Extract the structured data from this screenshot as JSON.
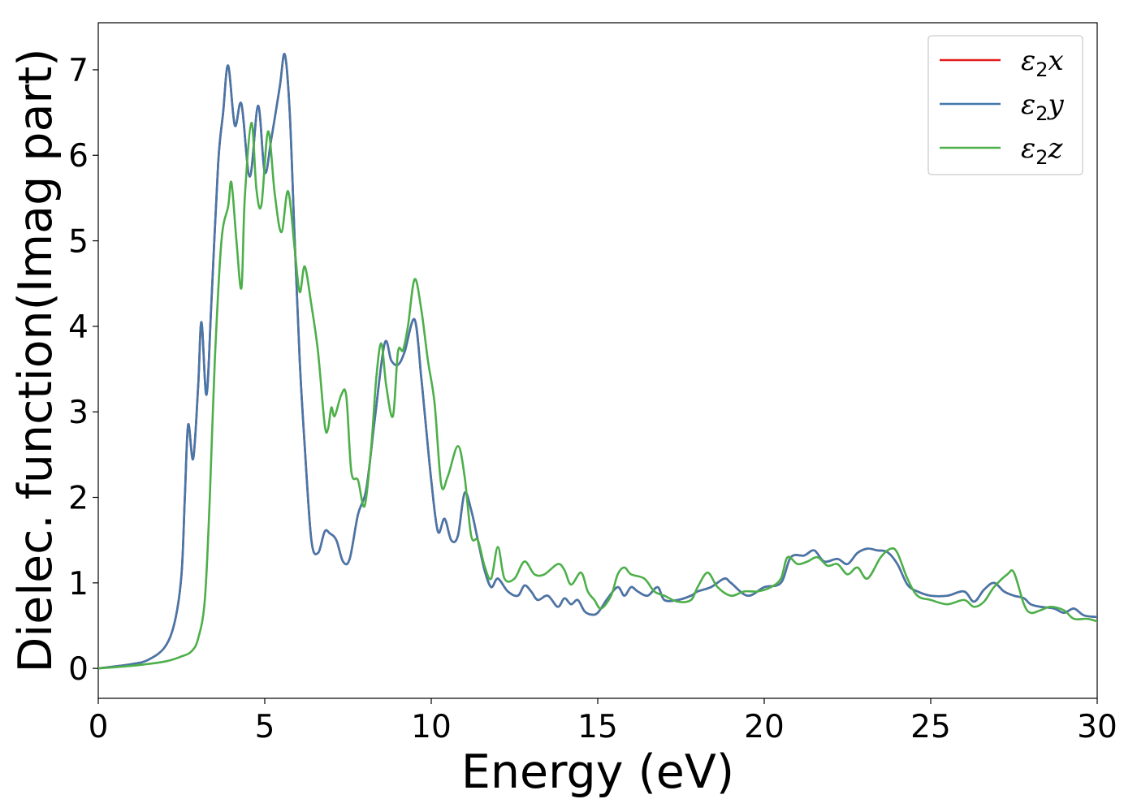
{
  "chart_data": {
    "type": "line",
    "xlabel": "Energy (eV)",
    "ylabel": "Dielec. function(Imag part)",
    "xlim": [
      0,
      30
    ],
    "ylim": [
      -0.35,
      7.55
    ],
    "xticks": [
      0,
      5,
      10,
      15,
      20,
      25,
      30
    ],
    "yticks": [
      0,
      1,
      2,
      3,
      4,
      5,
      6,
      7
    ],
    "grid": false,
    "legend_position": "top-right",
    "series": [
      {
        "name": "ε2x",
        "symbol": "ε",
        "sub": "2",
        "axis": "x",
        "color": "#e41a1c",
        "x": [
          0,
          1,
          1.5,
          2,
          2.3,
          2.5,
          2.6,
          2.7,
          2.85,
          3.0,
          3.1,
          3.25,
          3.4,
          3.6,
          3.75,
          3.9,
          4.1,
          4.3,
          4.55,
          4.8,
          5.0,
          5.2,
          5.45,
          5.6,
          5.75,
          5.9,
          6.05,
          6.2,
          6.4,
          6.6,
          6.8,
          6.95,
          7.15,
          7.35,
          7.55,
          7.8,
          8.05,
          8.3,
          8.6,
          8.8,
          9.0,
          9.2,
          9.5,
          9.7,
          9.8,
          10.0,
          10.2,
          10.4,
          10.6,
          10.8,
          11.0,
          11.2,
          11.4,
          11.6,
          11.8,
          12.0,
          12.3,
          12.6,
          12.8,
          13.0,
          13.2,
          13.5,
          13.8,
          14.0,
          14.2,
          14.4,
          14.6,
          14.8,
          15.0,
          15.3,
          15.6,
          15.8,
          16.0,
          16.2,
          16.5,
          16.8,
          17.0,
          17.4,
          17.8,
          18.0,
          18.4,
          18.8,
          19.0,
          19.5,
          20.0,
          20.5,
          20.8,
          21.2,
          21.5,
          21.8,
          22.2,
          22.5,
          22.8,
          23.1,
          23.4,
          23.7,
          24.0,
          24.3,
          24.6,
          25.0,
          25.5,
          26.0,
          26.3,
          26.6,
          26.9,
          27.2,
          27.5,
          27.8,
          28.0,
          28.3,
          28.7,
          29.0,
          29.3,
          29.6,
          30.0
        ],
        "y": [
          0,
          0.05,
          0.1,
          0.25,
          0.55,
          1.1,
          2.0,
          2.85,
          2.45,
          3.3,
          4.05,
          3.2,
          4.3,
          5.9,
          6.5,
          7.05,
          6.35,
          6.6,
          5.75,
          6.58,
          5.8,
          6.2,
          6.8,
          7.18,
          6.5,
          5.0,
          3.6,
          2.6,
          1.5,
          1.35,
          1.6,
          1.58,
          1.5,
          1.25,
          1.28,
          1.8,
          2.1,
          2.9,
          3.8,
          3.6,
          3.55,
          3.7,
          4.08,
          3.4,
          3.0,
          2.2,
          1.6,
          1.75,
          1.5,
          1.55,
          2.05,
          1.85,
          1.5,
          1.15,
          0.95,
          1.05,
          0.9,
          0.85,
          0.97,
          0.9,
          0.8,
          0.85,
          0.72,
          0.82,
          0.75,
          0.8,
          0.67,
          0.63,
          0.65,
          0.82,
          0.95,
          0.85,
          0.95,
          0.9,
          0.85,
          0.95,
          0.8,
          0.8,
          0.85,
          0.9,
          0.95,
          1.05,
          1.0,
          0.85,
          0.95,
          1.0,
          1.3,
          1.32,
          1.38,
          1.25,
          1.28,
          1.22,
          1.35,
          1.4,
          1.38,
          1.36,
          1.22,
          0.98,
          0.9,
          0.85,
          0.85,
          0.9,
          0.78,
          0.92,
          1.0,
          0.9,
          0.85,
          0.82,
          0.75,
          0.72,
          0.7,
          0.65,
          0.7,
          0.62,
          0.6
        ]
      },
      {
        "name": "ε2y",
        "symbol": "ε",
        "sub": "2",
        "axis": "y",
        "color": "#4477aa",
        "x": [
          0,
          1,
          1.5,
          2,
          2.3,
          2.5,
          2.6,
          2.7,
          2.85,
          3.0,
          3.1,
          3.25,
          3.4,
          3.6,
          3.75,
          3.9,
          4.1,
          4.3,
          4.55,
          4.8,
          5.0,
          5.2,
          5.45,
          5.6,
          5.75,
          5.9,
          6.05,
          6.2,
          6.4,
          6.6,
          6.8,
          6.95,
          7.15,
          7.35,
          7.55,
          7.8,
          8.05,
          8.3,
          8.6,
          8.8,
          9.0,
          9.2,
          9.5,
          9.7,
          9.8,
          10.0,
          10.2,
          10.4,
          10.6,
          10.8,
          11.0,
          11.2,
          11.4,
          11.6,
          11.8,
          12.0,
          12.3,
          12.6,
          12.8,
          13.0,
          13.2,
          13.5,
          13.8,
          14.0,
          14.2,
          14.4,
          14.6,
          14.8,
          15.0,
          15.3,
          15.6,
          15.8,
          16.0,
          16.2,
          16.5,
          16.8,
          17.0,
          17.4,
          17.8,
          18.0,
          18.4,
          18.8,
          19.0,
          19.5,
          20.0,
          20.5,
          20.8,
          21.2,
          21.5,
          21.8,
          22.2,
          22.5,
          22.8,
          23.1,
          23.4,
          23.7,
          24.0,
          24.3,
          24.6,
          25.0,
          25.5,
          26.0,
          26.3,
          26.6,
          26.9,
          27.2,
          27.5,
          27.8,
          28.0,
          28.3,
          28.7,
          29.0,
          29.3,
          29.6,
          30.0
        ],
        "y": [
          0,
          0.05,
          0.1,
          0.25,
          0.55,
          1.1,
          2.0,
          2.85,
          2.45,
          3.3,
          4.05,
          3.2,
          4.3,
          5.9,
          6.5,
          7.05,
          6.35,
          6.6,
          5.75,
          6.58,
          5.8,
          6.2,
          6.8,
          7.18,
          6.5,
          5.0,
          3.6,
          2.6,
          1.5,
          1.35,
          1.6,
          1.58,
          1.5,
          1.25,
          1.28,
          1.8,
          2.1,
          2.9,
          3.8,
          3.6,
          3.55,
          3.7,
          4.08,
          3.4,
          3.0,
          2.2,
          1.6,
          1.75,
          1.5,
          1.55,
          2.05,
          1.85,
          1.5,
          1.15,
          0.95,
          1.05,
          0.9,
          0.85,
          0.97,
          0.9,
          0.8,
          0.85,
          0.72,
          0.82,
          0.75,
          0.8,
          0.67,
          0.63,
          0.65,
          0.82,
          0.95,
          0.85,
          0.95,
          0.9,
          0.85,
          0.95,
          0.8,
          0.8,
          0.85,
          0.9,
          0.95,
          1.05,
          1.0,
          0.85,
          0.95,
          1.0,
          1.3,
          1.32,
          1.38,
          1.25,
          1.28,
          1.22,
          1.35,
          1.4,
          1.38,
          1.36,
          1.22,
          0.98,
          0.9,
          0.85,
          0.85,
          0.9,
          0.78,
          0.92,
          1.0,
          0.9,
          0.85,
          0.82,
          0.75,
          0.72,
          0.7,
          0.65,
          0.7,
          0.62,
          0.6
        ]
      },
      {
        "name": "ε2z",
        "symbol": "ε",
        "sub": "2",
        "axis": "z",
        "color": "#4daf4a",
        "x": [
          0,
          1,
          2,
          2.5,
          2.8,
          3.0,
          3.2,
          3.35,
          3.5,
          3.7,
          3.9,
          4.0,
          4.15,
          4.3,
          4.4,
          4.6,
          4.75,
          4.9,
          5.1,
          5.3,
          5.5,
          5.7,
          5.9,
          6.05,
          6.2,
          6.4,
          6.6,
          6.8,
          6.9,
          7.0,
          7.1,
          7.3,
          7.45,
          7.6,
          7.8,
          8.0,
          8.2,
          8.35,
          8.5,
          8.65,
          8.85,
          9.0,
          9.15,
          9.3,
          9.5,
          9.7,
          9.9,
          10.1,
          10.3,
          10.5,
          10.8,
          11.0,
          11.2,
          11.4,
          11.6,
          11.8,
          12.0,
          12.2,
          12.5,
          12.8,
          13.1,
          13.4,
          13.8,
          14.0,
          14.2,
          14.5,
          14.7,
          14.9,
          15.1,
          15.4,
          15.6,
          15.8,
          16.0,
          16.4,
          16.7,
          17.0,
          17.4,
          17.8,
          18.0,
          18.3,
          18.6,
          19.0,
          19.4,
          19.8,
          20.2,
          20.5,
          20.7,
          21.0,
          21.3,
          21.6,
          21.9,
          22.2,
          22.5,
          22.8,
          23.1,
          23.5,
          23.8,
          24.0,
          24.3,
          24.6,
          25.0,
          25.5,
          26.0,
          26.3,
          26.6,
          26.9,
          27.3,
          27.5,
          27.8,
          28.0,
          28.3,
          28.6,
          29.0,
          29.3,
          29.7,
          30.0
        ],
        "y": [
          0,
          0.03,
          0.08,
          0.14,
          0.2,
          0.35,
          0.8,
          2.0,
          3.6,
          5.0,
          5.4,
          5.68,
          5.0,
          4.45,
          5.5,
          6.38,
          5.6,
          5.42,
          6.28,
          5.55,
          5.1,
          5.58,
          4.9,
          4.4,
          4.7,
          4.25,
          3.7,
          2.85,
          2.8,
          3.05,
          2.95,
          3.2,
          3.18,
          2.3,
          2.2,
          1.9,
          2.6,
          3.4,
          3.8,
          3.3,
          2.95,
          3.7,
          3.72,
          4.0,
          4.55,
          4.2,
          3.6,
          3.1,
          2.15,
          2.25,
          2.6,
          2.25,
          1.55,
          1.5,
          1.2,
          1.05,
          1.42,
          1.05,
          1.05,
          1.25,
          1.1,
          1.1,
          1.22,
          1.15,
          0.98,
          1.12,
          0.9,
          0.8,
          0.7,
          0.85,
          1.1,
          1.18,
          1.1,
          1.05,
          0.9,
          0.85,
          0.78,
          0.8,
          0.95,
          1.12,
          0.95,
          0.85,
          0.9,
          0.9,
          0.95,
          1.05,
          1.3,
          1.22,
          1.25,
          1.3,
          1.2,
          1.22,
          1.1,
          1.18,
          1.05,
          1.3,
          1.4,
          1.35,
          1.05,
          0.85,
          0.8,
          0.75,
          0.8,
          0.72,
          0.78,
          0.95,
          1.1,
          1.12,
          0.75,
          0.65,
          0.68,
          0.72,
          0.68,
          0.58,
          0.58,
          0.55
        ]
      }
    ]
  }
}
